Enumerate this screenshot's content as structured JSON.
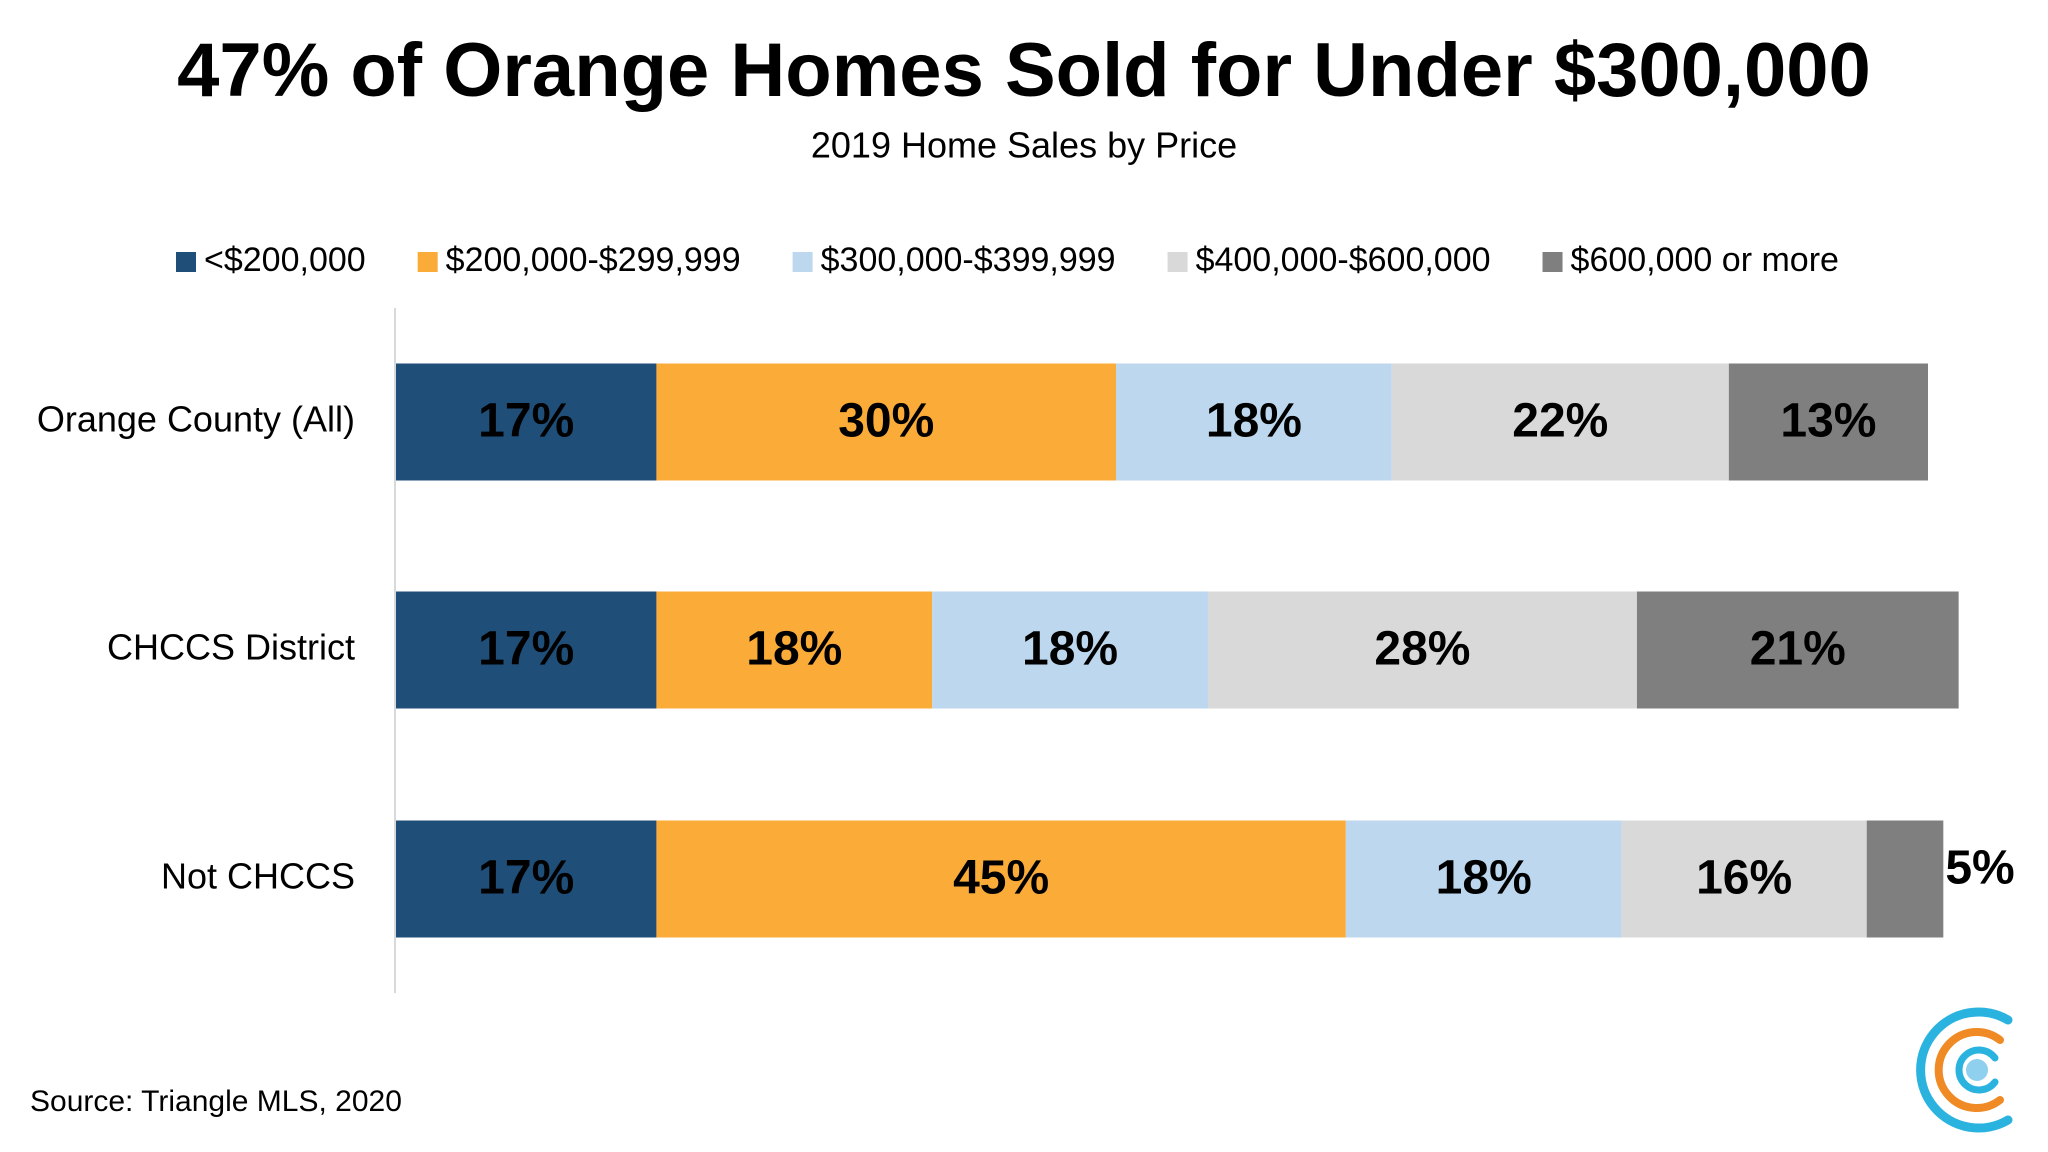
{
  "chart_data": {
    "type": "stacked_bar_horizontal",
    "title": "47% of Orange Homes Sold for Under $300,000",
    "subtitle": "2019 Home Sales by Price",
    "categories": [
      "Orange County (All)",
      "CHCCS District",
      "Not CHCCS"
    ],
    "xlim": [
      0,
      100
    ],
    "legend": "top",
    "series": [
      {
        "name": "<$200,000",
        "color": "#1f4e79",
        "values": [
          17,
          17,
          17
        ],
        "value_labels": [
          "17%",
          "17%",
          "17%"
        ]
      },
      {
        "name": "$200,000-$299,999",
        "color": "#fbab38",
        "values": [
          30,
          18,
          45
        ],
        "value_labels": [
          "30%",
          "18%",
          "45%"
        ]
      },
      {
        "name": "$300,000-$399,999",
        "color": "#bdd7ee",
        "values": [
          18,
          18,
          18
        ],
        "value_labels": [
          "18%",
          "18%",
          "18%"
        ]
      },
      {
        "name": "$400,000-$600,000",
        "color": "#d9d9d9",
        "values": [
          22,
          28,
          16
        ],
        "value_labels": [
          "22%",
          "28%",
          "16%"
        ]
      },
      {
        "name": "$600,000 or more",
        "color": "#7f7f7f",
        "values": [
          13,
          21,
          5
        ],
        "value_labels": [
          "13%",
          "21%",
          "5%"
        ]
      }
    ],
    "source": "Source: Triangle MLS, 2020"
  }
}
